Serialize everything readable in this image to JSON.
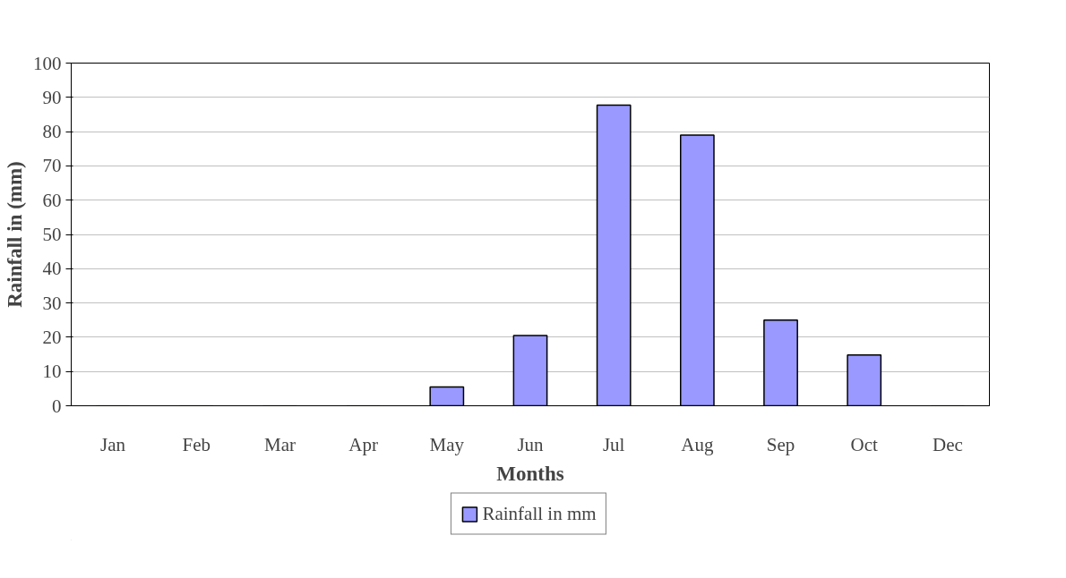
{
  "chart_data": {
    "type": "bar",
    "xlabel": "Months",
    "ylabel": "Rainfall in (mm)",
    "categories": [
      "Jan",
      "Feb",
      "Mar",
      "Apr",
      "May",
      "Jun",
      "Jul",
      "Aug",
      "Sep",
      "Oct",
      "Dec"
    ],
    "series": [
      {
        "name": "Rainfall in mm",
        "color": "#9999ff",
        "values": [
          0,
          0,
          0,
          0,
          5.5,
          20.5,
          87.7,
          79.0,
          25.0,
          14.8,
          0
        ]
      }
    ],
    "ylim": [
      0,
      100
    ],
    "yticks": [
      0,
      10,
      20,
      30,
      40,
      50,
      60,
      70,
      80,
      90,
      100
    ],
    "grid": "y",
    "legend": "bottom"
  }
}
